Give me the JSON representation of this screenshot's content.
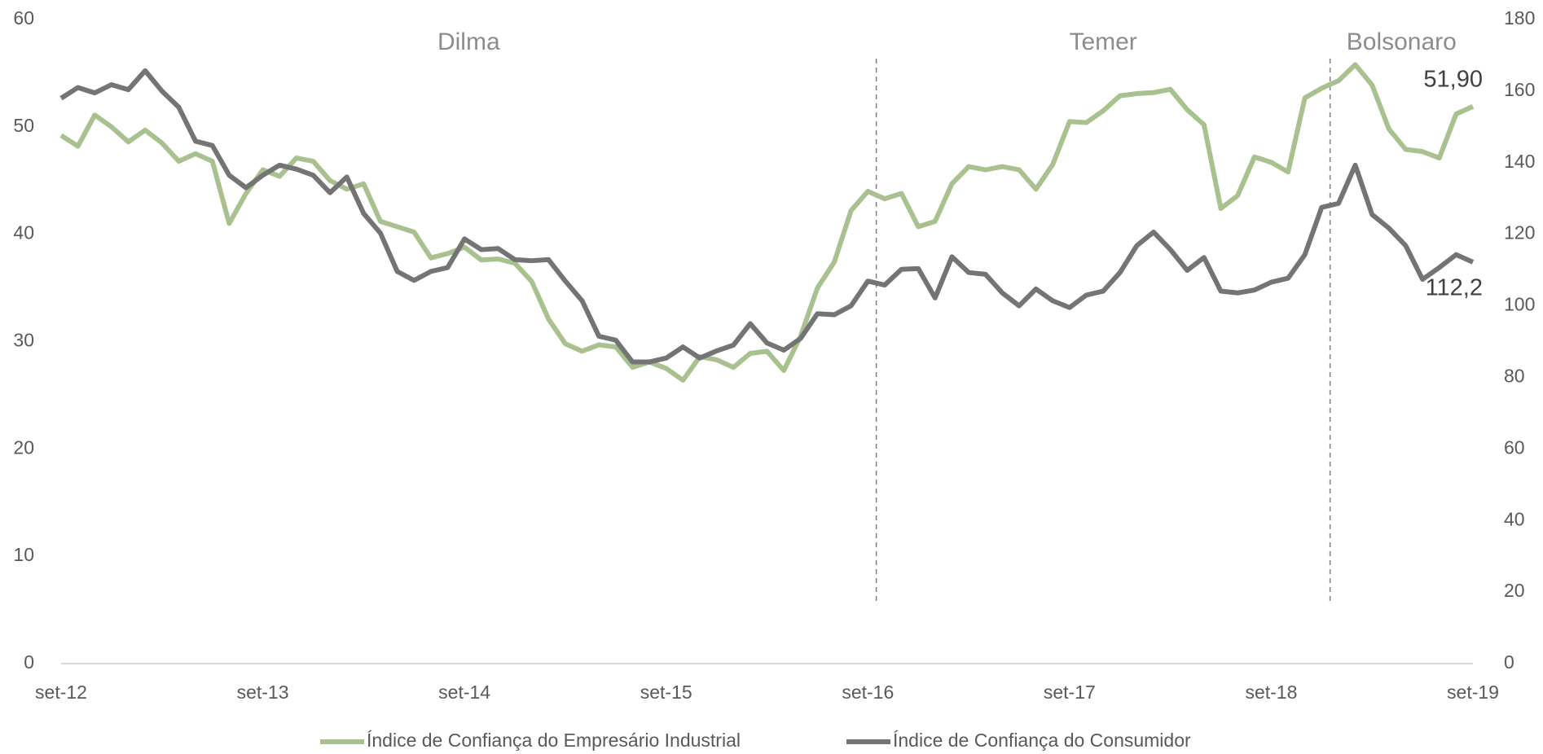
{
  "chart_data": {
    "type": "line",
    "categories": [
      "set-12",
      null,
      null,
      null,
      null,
      null,
      null,
      null,
      null,
      null,
      null,
      null,
      "set-13",
      null,
      null,
      null,
      null,
      null,
      null,
      null,
      null,
      null,
      null,
      null,
      "set-14",
      null,
      null,
      null,
      null,
      null,
      null,
      null,
      null,
      null,
      null,
      null,
      "set-15",
      null,
      null,
      null,
      null,
      null,
      null,
      null,
      null,
      null,
      null,
      null,
      "set-16",
      null,
      null,
      null,
      null,
      null,
      null,
      null,
      null,
      null,
      null,
      null,
      "set-17",
      null,
      null,
      null,
      null,
      null,
      null,
      null,
      null,
      null,
      null,
      null,
      "set-18",
      null,
      null,
      null,
      null,
      null,
      null,
      null,
      null,
      null,
      null,
      null,
      "set-19"
    ],
    "series": [
      {
        "name": "Índice de Confiança do Empresário Industrial",
        "color": "#a9c18f",
        "values": [
          49.2,
          48.2,
          51.1,
          50.0,
          48.6,
          49.7,
          48.5,
          46.8,
          47.5,
          46.8,
          41.0,
          43.8,
          46.0,
          45.4,
          47.1,
          46.8,
          45.0,
          44.2,
          44.7,
          41.2,
          40.7,
          40.2,
          37.8,
          38.2,
          38.8,
          37.6,
          37.7,
          37.3,
          35.6,
          32.1,
          29.8,
          29.1,
          29.7,
          29.5,
          27.6,
          28.1,
          27.5,
          26.4,
          28.6,
          28.3,
          27.6,
          28.9,
          29.1,
          27.3,
          30.5,
          35.0,
          37.4,
          42.2,
          44.0,
          43.3,
          43.8,
          40.7,
          41.2,
          44.7,
          46.3,
          46.0,
          46.3,
          46.0,
          44.2,
          46.5,
          50.5,
          50.4,
          51.5,
          52.9,
          53.1,
          53.2,
          53.5,
          51.6,
          50.2,
          42.4,
          43.6,
          47.2,
          46.7,
          45.8,
          52.7,
          53.6,
          54.3,
          55.8,
          53.9,
          49.8,
          47.9,
          47.7,
          47.1,
          51.2,
          51.9
        ],
        "value_labels": [
          null,
          null,
          null,
          null,
          null,
          null,
          null,
          null,
          null,
          null,
          null,
          null,
          null,
          null,
          null,
          null,
          null,
          null,
          null,
          null,
          null,
          null,
          null,
          null,
          null,
          null,
          null,
          null,
          null,
          null,
          null,
          null,
          null,
          null,
          null,
          null,
          null,
          null,
          null,
          null,
          null,
          null,
          null,
          null,
          null,
          null,
          null,
          null,
          null,
          null,
          null,
          null,
          null,
          null,
          null,
          null,
          null,
          null,
          null,
          null,
          null,
          null,
          null,
          null,
          null,
          null,
          null,
          null,
          null,
          null,
          null,
          null,
          null,
          null,
          null,
          null,
          null,
          null,
          null,
          null,
          null,
          null,
          null,
          null,
          "51,90"
        ]
      },
      {
        "name": "Índice de Confiança do Consumidor",
        "color": "#747474",
        "axis": "y2",
        "values": [
          158,
          161,
          159.5,
          161.8,
          160.4,
          165.7,
          160,
          155.5,
          146,
          144.8,
          136.5,
          133,
          136.5,
          139.3,
          138.2,
          136.5,
          131.6,
          136,
          125.8,
          120.3,
          109.6,
          107.1,
          109.6,
          110.7,
          118.7,
          115.7,
          116,
          112.9,
          112.6,
          112.9,
          106.9,
          101.4,
          91.5,
          90.4,
          84.3,
          84.3,
          85.4,
          88.5,
          85.4,
          87.4,
          89,
          95,
          89.6,
          87.6,
          90.9,
          97.8,
          97.5,
          100,
          106.9,
          105.8,
          110.2,
          110.4,
          102.2,
          113.7,
          109.3,
          108.8,
          103.6,
          100,
          104.7,
          101.4,
          99.5,
          103,
          104.1,
          109.3,
          116.8,
          120.6,
          115.7,
          109.9,
          113.5,
          104.1,
          103.6,
          104.4,
          106.6,
          107.7,
          114.3,
          127.5,
          128.6,
          139.3,
          125.5,
          121.7,
          116.8,
          107.4,
          110.7,
          114.3,
          112.2
        ],
        "value_labels": [
          null,
          null,
          null,
          null,
          null,
          null,
          null,
          null,
          null,
          null,
          null,
          null,
          null,
          null,
          null,
          null,
          null,
          null,
          null,
          null,
          null,
          null,
          null,
          null,
          null,
          null,
          null,
          null,
          null,
          null,
          null,
          null,
          null,
          null,
          null,
          null,
          null,
          null,
          null,
          null,
          null,
          null,
          null,
          null,
          null,
          null,
          null,
          null,
          null,
          null,
          null,
          null,
          null,
          null,
          null,
          null,
          null,
          null,
          null,
          null,
          null,
          null,
          null,
          null,
          null,
          null,
          null,
          null,
          null,
          null,
          null,
          null,
          null,
          null,
          null,
          null,
          null,
          null,
          null,
          null,
          null,
          null,
          null,
          null,
          "112,2"
        ]
      }
    ],
    "ylim": [
      0,
      60
    ],
    "yticks": [
      0,
      10,
      20,
      30,
      40,
      50,
      60
    ],
    "y2lim": [
      0,
      180
    ],
    "y2ticks": [
      0,
      20,
      40,
      60,
      80,
      100,
      120,
      140,
      160,
      180
    ],
    "vlines": [
      48.5,
      75.5
    ],
    "annotations": [
      "Dilma",
      "Temer",
      "Bolsonaro"
    ],
    "legend": "bottom",
    "grid": false
  }
}
